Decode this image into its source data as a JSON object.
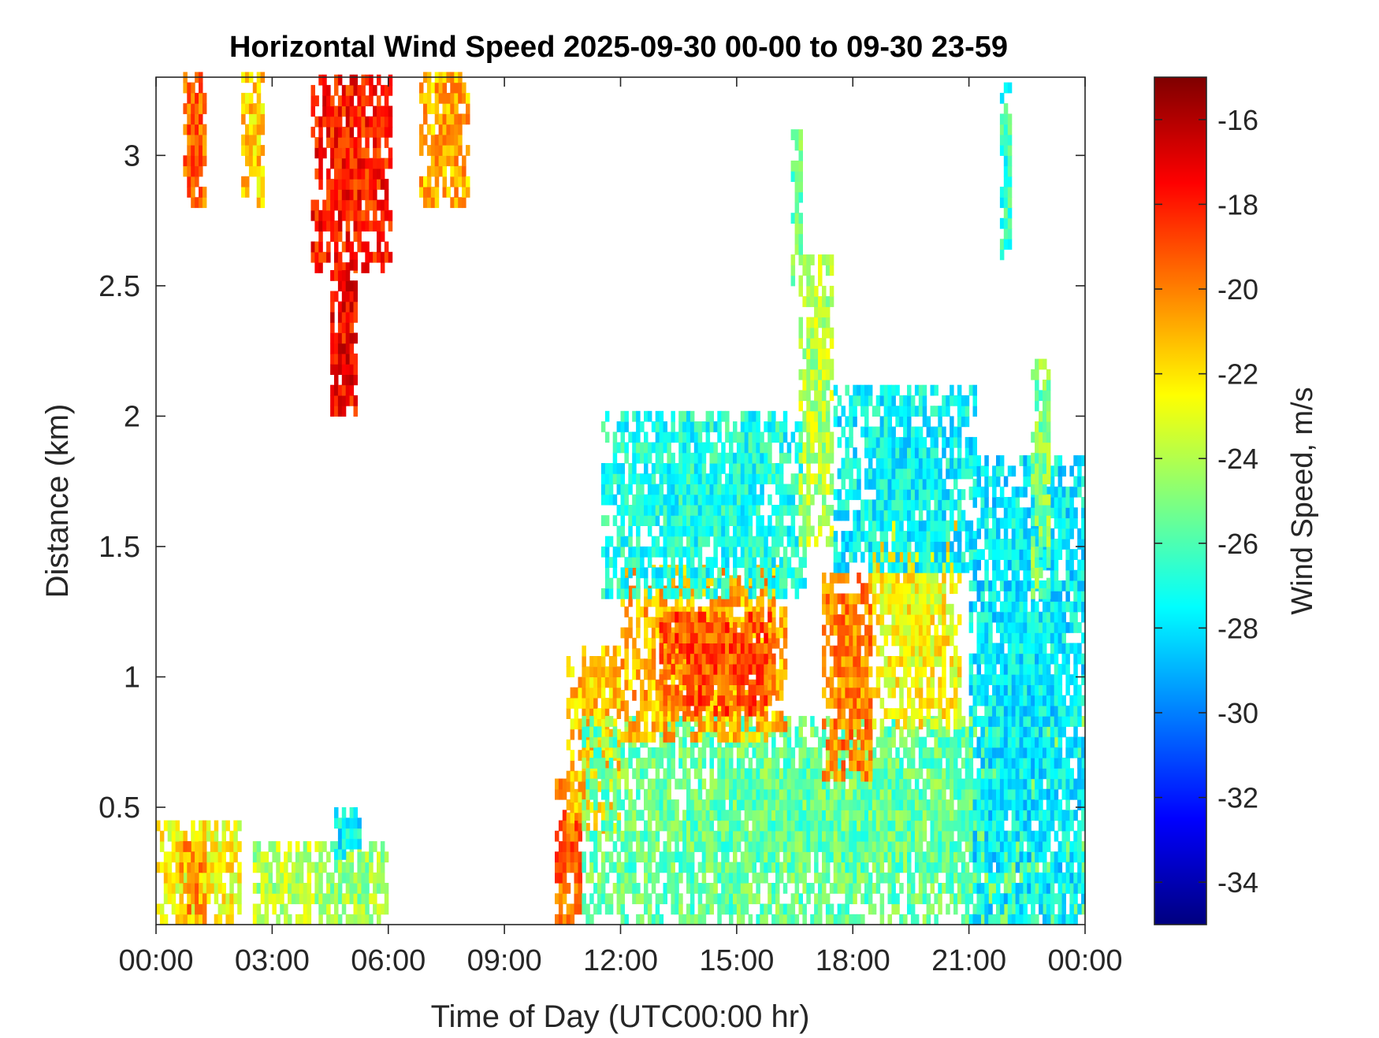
{
  "chart_data": {
    "type": "heatmap",
    "title": "Horizontal Wind Speed 2025-09-30 00-00 to 09-30 23-59",
    "xlabel": "Time of Day (UTC00:00 hr)",
    "ylabel": "Distance (km)",
    "colorbar_label": "Wind Speed, m/s",
    "x_unit": "hours",
    "xlim": [
      0,
      24
    ],
    "ylim": [
      0.05,
      3.3
    ],
    "clim": [
      -35,
      -15
    ],
    "x_ticks": [
      {
        "value": 0,
        "label": "00:00"
      },
      {
        "value": 3,
        "label": "03:00"
      },
      {
        "value": 6,
        "label": "06:00"
      },
      {
        "value": 9,
        "label": "09:00"
      },
      {
        "value": 12,
        "label": "12:00"
      },
      {
        "value": 15,
        "label": "15:00"
      },
      {
        "value": 18,
        "label": "18:00"
      },
      {
        "value": 21,
        "label": "21:00"
      },
      {
        "value": 24,
        "label": "00:00"
      }
    ],
    "y_ticks": [
      {
        "value": 0.5,
        "label": "0.5"
      },
      {
        "value": 1,
        "label": "1"
      },
      {
        "value": 1.5,
        "label": "1.5"
      },
      {
        "value": 2,
        "label": "2"
      },
      {
        "value": 2.5,
        "label": "2.5"
      },
      {
        "value": 3,
        "label": "3"
      }
    ],
    "colorbar_ticks": [
      {
        "value": -16,
        "label": "-16"
      },
      {
        "value": -18,
        "label": "-18"
      },
      {
        "value": -20,
        "label": "-20"
      },
      {
        "value": -22,
        "label": "-22"
      },
      {
        "value": -24,
        "label": "-24"
      },
      {
        "value": -26,
        "label": "-26"
      },
      {
        "value": -28,
        "label": "-28"
      },
      {
        "value": -30,
        "label": "-30"
      },
      {
        "value": -32,
        "label": "-32"
      },
      {
        "value": -34,
        "label": "-34"
      }
    ],
    "colormap": "jet",
    "colormap_stops": [
      "#00007f",
      "#0000ff",
      "#007fff",
      "#00ffff",
      "#7fff7f",
      "#ffff00",
      "#ff7f00",
      "#ff0000",
      "#7f0000"
    ],
    "missing_color": "#ffffff",
    "regions": [
      {
        "t0": 0.0,
        "t1": 2.2,
        "z0": 0.05,
        "z1": 0.45,
        "value": -22.5
      },
      {
        "t0": 0.6,
        "t1": 1.3,
        "z0": 0.05,
        "z1": 0.35,
        "value": -20.5
      },
      {
        "t0": 2.5,
        "t1": 4.3,
        "z0": 0.05,
        "z1": 0.35,
        "value": -24.0
      },
      {
        "t0": 4.3,
        "t1": 6.0,
        "z0": 0.05,
        "z1": 0.35,
        "value": -24.5
      },
      {
        "t0": 4.6,
        "t1": 5.3,
        "z0": 0.3,
        "z1": 0.5,
        "value": -27.5
      },
      {
        "t0": 0.7,
        "t1": 1.3,
        "z0": 2.8,
        "z1": 3.3,
        "value": -19.5
      },
      {
        "t0": 2.2,
        "t1": 2.8,
        "z0": 2.8,
        "z1": 3.3,
        "value": -21.5
      },
      {
        "t0": 4.0,
        "t1": 6.1,
        "z0": 2.55,
        "z1": 3.3,
        "value": -18.0
      },
      {
        "t0": 4.5,
        "t1": 5.2,
        "z0": 2.0,
        "z1": 2.6,
        "value": -17.5
      },
      {
        "t0": 6.8,
        "t1": 8.1,
        "z0": 2.8,
        "z1": 3.3,
        "value": -21.0
      },
      {
        "t0": 10.3,
        "t1": 11.0,
        "z0": 0.05,
        "z1": 0.6,
        "value": -19.5
      },
      {
        "t0": 10.6,
        "t1": 12.0,
        "z0": 0.4,
        "z1": 1.1,
        "value": -21.5
      },
      {
        "t0": 11.0,
        "t1": 24.0,
        "z0": 0.05,
        "z1": 0.85,
        "value": -25.5
      },
      {
        "t0": 12.0,
        "t1": 16.3,
        "z0": 0.75,
        "z1": 1.4,
        "value": -21.0
      },
      {
        "t0": 13.0,
        "t1": 16.0,
        "z0": 0.85,
        "z1": 1.25,
        "value": -19.0
      },
      {
        "t0": 11.5,
        "t1": 16.8,
        "z0": 1.3,
        "z1": 2.0,
        "value": -27.0
      },
      {
        "t0": 17.2,
        "t1": 18.5,
        "z0": 0.6,
        "z1": 1.4,
        "value": -20.0
      },
      {
        "t0": 18.5,
        "t1": 20.8,
        "z0": 0.8,
        "z1": 1.6,
        "value": -22.5
      },
      {
        "t0": 16.6,
        "t1": 17.5,
        "z0": 1.5,
        "z1": 2.6,
        "value": -24.0
      },
      {
        "t0": 17.5,
        "t1": 21.2,
        "z0": 1.4,
        "z1": 2.1,
        "value": -27.5
      },
      {
        "t0": 21.0,
        "t1": 24.0,
        "z0": 0.05,
        "z1": 1.85,
        "value": -27.8
      },
      {
        "t0": 22.6,
        "t1": 23.1,
        "z0": 1.3,
        "z1": 2.2,
        "value": -25.0
      },
      {
        "t0": 21.8,
        "t1": 22.1,
        "z0": 2.6,
        "z1": 3.25,
        "value": -26.5
      },
      {
        "t0": 16.4,
        "t1": 16.7,
        "z0": 2.5,
        "z1": 3.1,
        "value": -25.5
      }
    ]
  }
}
